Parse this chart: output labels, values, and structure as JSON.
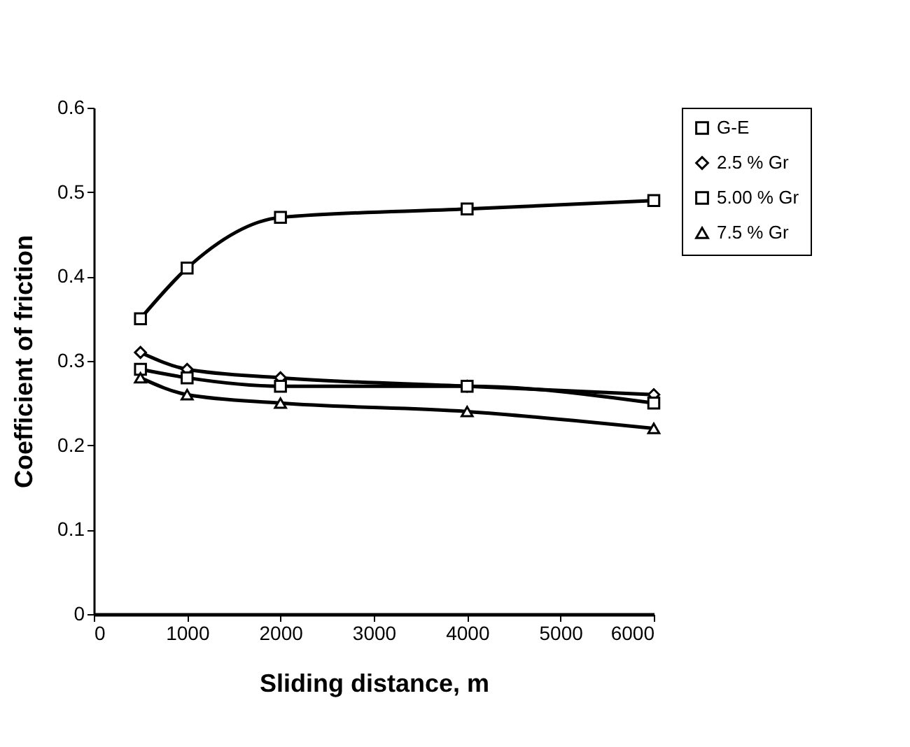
{
  "chart_data": {
    "type": "line",
    "xlabel": "Sliding distance, m",
    "ylabel": "Coefficient of friction",
    "x": [
      500,
      1000,
      2000,
      4000,
      6000
    ],
    "series": [
      {
        "name": "G-E",
        "color": "#000000",
        "marker": "square",
        "values": [
          0.35,
          0.41,
          0.47,
          0.48,
          0.49
        ]
      },
      {
        "name": "2.5 % Gr",
        "color": "#000000",
        "marker": "diamond",
        "values": [
          0.31,
          0.29,
          0.28,
          0.27,
          0.26
        ]
      },
      {
        "name": "5.00 % Gr",
        "color": "#000000",
        "marker": "square",
        "values": [
          0.29,
          0.28,
          0.27,
          0.27,
          0.25
        ]
      },
      {
        "name": "7.5 % Gr",
        "color": "#000000",
        "marker": "triangle",
        "values": [
          0.28,
          0.26,
          0.25,
          0.24,
          0.22
        ]
      }
    ],
    "xlim": [
      0,
      6000
    ],
    "xticks": [
      0,
      1000,
      2000,
      3000,
      4000,
      5000,
      6000
    ],
    "ylim": [
      0,
      0.6
    ],
    "yticks": [
      0,
      0.1,
      0.2,
      0.3,
      0.4,
      0.5,
      0.6
    ],
    "grid": false,
    "legend": "right",
    "line_style": "solid"
  }
}
